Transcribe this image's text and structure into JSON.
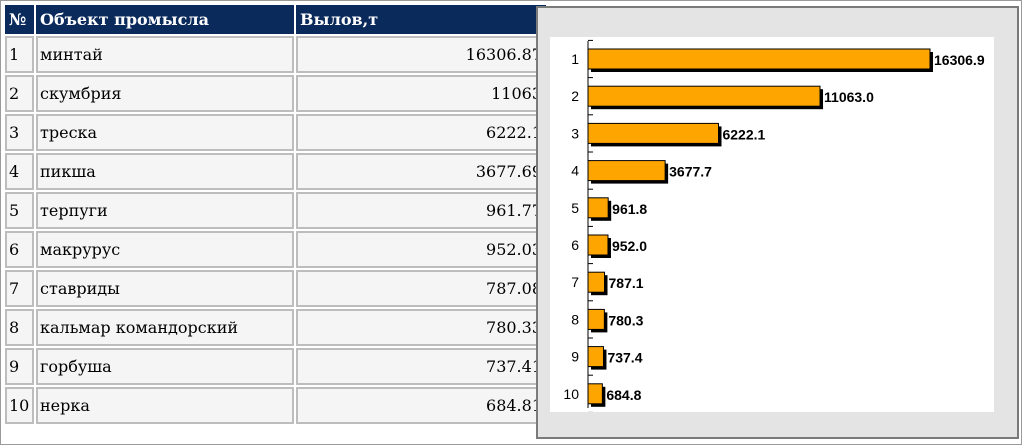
{
  "table": {
    "headers": [
      "№",
      "Объект промысла",
      "Вылов,т"
    ],
    "rows": [
      {
        "n": "1",
        "name": "минтай",
        "value": "16306.87"
      },
      {
        "n": "2",
        "name": "скумбрия",
        "value": "11063"
      },
      {
        "n": "3",
        "name": "треска",
        "value": "6222.1"
      },
      {
        "n": "4",
        "name": "пикша",
        "value": "3677.69"
      },
      {
        "n": "5",
        "name": "терпуги",
        "value": "961.77"
      },
      {
        "n": "6",
        "name": "макрурус",
        "value": "952.03"
      },
      {
        "n": "7",
        "name": "ставриды",
        "value": "787.08"
      },
      {
        "n": "8",
        "name": "кальмар командорский",
        "value": "780.33"
      },
      {
        "n": "9",
        "name": "горбуша",
        "value": "737.41"
      },
      {
        "n": "10",
        "name": "нерка",
        "value": "684.81"
      }
    ]
  },
  "chart_data": {
    "type": "bar",
    "orientation": "horizontal",
    "categories": [
      "1",
      "2",
      "3",
      "4",
      "5",
      "6",
      "7",
      "8",
      "9",
      "10"
    ],
    "values": [
      16306.9,
      11063.0,
      6222.1,
      3677.7,
      961.8,
      952.0,
      787.1,
      780.3,
      737.4,
      684.8
    ],
    "value_labels": [
      "16306.9",
      "11063.0",
      "6222.1",
      "3677.7",
      "961.8",
      "952.0",
      "787.1",
      "780.3",
      "737.4",
      "684.8"
    ],
    "xlim": [
      0,
      16306.9
    ],
    "bar_color": "#ffa500",
    "shadow_color": "#000000",
    "title": "",
    "xlabel": "",
    "ylabel": "",
    "legend": "none",
    "grid": false
  }
}
